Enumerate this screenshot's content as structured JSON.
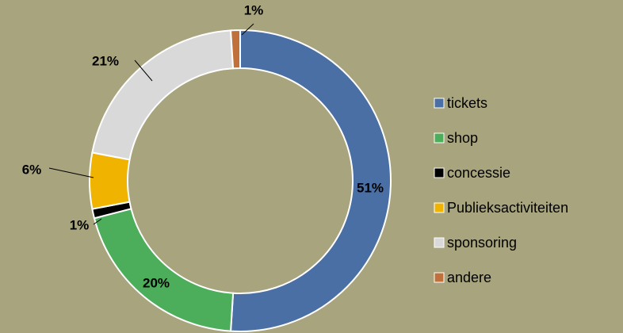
{
  "chart_data": {
    "type": "donut",
    "categories": [
      "tickets",
      "shop",
      "concessie",
      "Publieksactiviteiten",
      "sponsoring",
      "andere"
    ],
    "values": [
      51,
      20,
      1,
      6,
      21,
      1
    ],
    "value_labels": [
      "51%",
      "20%",
      "1%",
      "6%",
      "21%",
      "1%"
    ],
    "colors": [
      "#4a6fa5",
      "#4cae5a",
      "#000000",
      "#f0b400",
      "#d9d9d9",
      "#c0703a"
    ],
    "legend": "right"
  }
}
